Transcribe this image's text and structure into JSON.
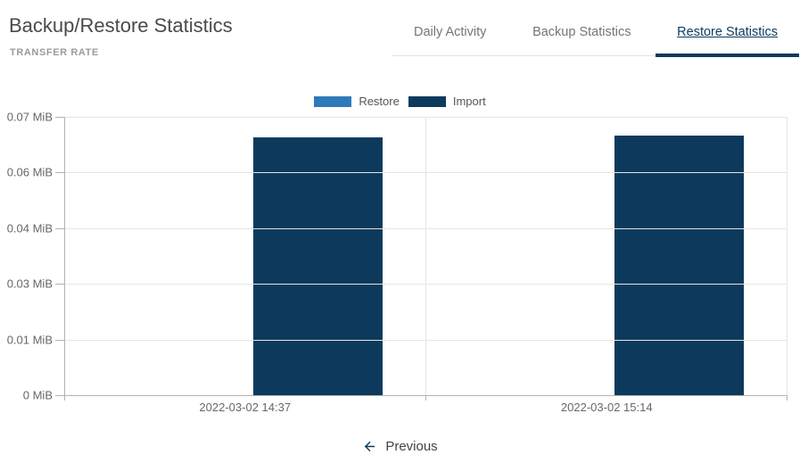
{
  "header": {
    "title": "Backup/Restore Statistics",
    "subtitle": "TRANSFER RATE"
  },
  "tabs": {
    "items": [
      {
        "label": "Daily Activity",
        "active": false
      },
      {
        "label": "Backup Statistics",
        "active": false
      },
      {
        "label": "Restore Statistics",
        "active": true
      }
    ]
  },
  "chart_data": {
    "type": "bar",
    "title": "",
    "categories": [
      "2022-03-02 14:37",
      "2022-03-02 15:14"
    ],
    "series": [
      {
        "name": "Restore",
        "color": "#2e79ba",
        "values": [
          0,
          0
        ]
      },
      {
        "name": "Import",
        "color": "#0d3a5c",
        "values": [
          0.0648,
          0.0653
        ]
      }
    ],
    "value_unit": "MiB",
    "ylim": [
      0,
      0.07
    ],
    "y_tick_labels": [
      "0.07 MiB",
      "0.06 MiB",
      "0.04 MiB",
      "0.03 MiB",
      "0.01 MiB",
      "0 MiB"
    ],
    "grid": true,
    "legend_position": "top-center"
  },
  "footer": {
    "previous_label": "Previous",
    "previous_icon": "arrow-back"
  },
  "colors": {
    "accent_navy": "#0d3a5c",
    "restore_blue": "#2e79ba",
    "grid_line": "#e5e5e5",
    "axis_line": "#b3b3b3",
    "title_text": "#4a4a4a",
    "subtitle_text": "#9b9b9b",
    "tab_inactive_text": "#757575",
    "tick_text": "#676767"
  }
}
